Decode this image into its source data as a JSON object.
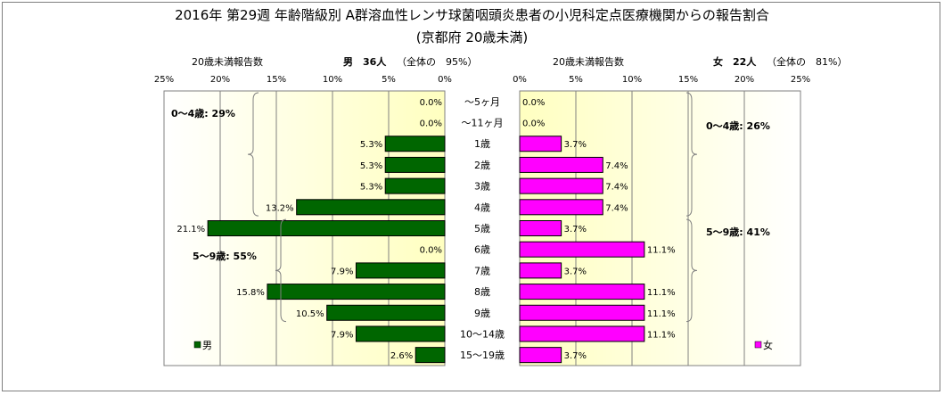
{
  "title": "2016年 第29週 年齢階級別 A群溶血性レンサ球菌咽頭炎患者の小児科定点医療機関からの報告割合",
  "subtitle": "(京都府 20歳未満)",
  "left_header": {
    "caption": "20歳未満報告数",
    "sex_count": "男　36人",
    "ratio": "（全体の　95%）"
  },
  "right_header": {
    "caption": "20歳未満報告数",
    "sex_count": "女　22人",
    "ratio": "（全体の　81%）"
  },
  "colors": {
    "male": "#006600",
    "female": "#ff00ff",
    "plot_bg_center": "#ffffc0",
    "plot_bg_edge": "#ffffff"
  },
  "chart_data": [
    {
      "type": "bar",
      "orientation": "horizontal",
      "side": "left",
      "legend": "男",
      "xlim": [
        0,
        25
      ],
      "x_ticks": [
        "25%",
        "20%",
        "15%",
        "10%",
        "5%",
        "0%"
      ],
      "categories": [
        "～5ヶ月",
        "～11ヶ月",
        "1歳",
        "2歳",
        "3歳",
        "4歳",
        "5歳",
        "6歳",
        "7歳",
        "8歳",
        "9歳",
        "10～14歳",
        "15～19歳"
      ],
      "values": [
        0.0,
        0.0,
        5.3,
        5.3,
        5.3,
        13.2,
        21.1,
        0.0,
        7.9,
        15.8,
        10.5,
        7.9,
        2.6
      ],
      "labels": [
        "0.0%",
        "0.0%",
        "5.3%",
        "5.3%",
        "5.3%",
        "13.2%",
        "21.1%",
        "0.0%",
        "7.9%",
        "15.8%",
        "10.5%",
        "7.9%",
        "2.6%"
      ],
      "group_annotations": [
        {
          "text": "0～4歳: 29%",
          "from": 0,
          "to": 5
        },
        {
          "text": "5～9歳: 55%",
          "from": 6,
          "to": 10
        }
      ]
    },
    {
      "type": "bar",
      "orientation": "horizontal",
      "side": "right",
      "legend": "女",
      "xlim": [
        0,
        25
      ],
      "x_ticks": [
        "0%",
        "5%",
        "10%",
        "15%",
        "20%",
        "25%"
      ],
      "categories": [
        "～5ヶ月",
        "～11ヶ月",
        "1歳",
        "2歳",
        "3歳",
        "4歳",
        "5歳",
        "6歳",
        "7歳",
        "8歳",
        "9歳",
        "10～14歳",
        "15～19歳"
      ],
      "values": [
        0.0,
        0.0,
        3.7,
        7.4,
        7.4,
        7.4,
        3.7,
        11.1,
        3.7,
        11.1,
        11.1,
        11.1,
        3.7
      ],
      "labels": [
        "0.0%",
        "0.0%",
        "3.7%",
        "7.4%",
        "7.4%",
        "7.4%",
        "3.7%",
        "11.1%",
        "3.7%",
        "11.1%",
        "11.1%",
        "11.1%",
        "3.7%"
      ],
      "group_annotations": [
        {
          "text": "0～4歳: 26%",
          "from": 0,
          "to": 5
        },
        {
          "text": "5～9歳: 41%",
          "from": 6,
          "to": 10
        }
      ]
    }
  ]
}
